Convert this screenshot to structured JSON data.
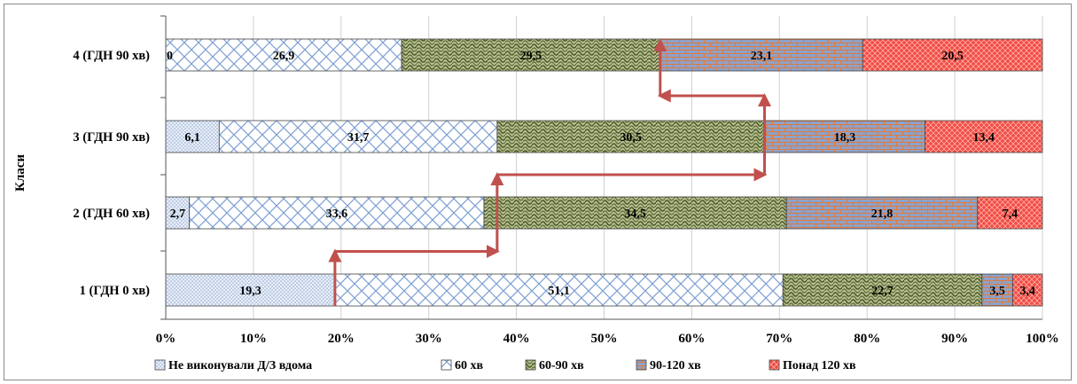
{
  "chart_data": {
    "type": "bar",
    "orientation": "horizontal",
    "stacked": "percent",
    "categories": [
      "1 (ГДН 0 хв)",
      "2 (ГДН 60 хв)",
      "3 (ГДН 90 хв)",
      "4 (ГДН 90 хв)"
    ],
    "series": [
      {
        "name": "Не виконували Д/З вдома",
        "values": [
          19.3,
          2.7,
          6.1,
          0
        ],
        "labels": [
          "19,3",
          "2,7",
          "6,1",
          "0"
        ],
        "color": "#dbe6f4",
        "pattern": "dots"
      },
      {
        "name": "60 хв",
        "values": [
          51.1,
          33.6,
          31.7,
          26.9
        ],
        "labels": [
          "51,1",
          "33,6",
          "31,7",
          "26,9"
        ],
        "color": "#9db5dc",
        "pattern": "crosshatch"
      },
      {
        "name": "60-90 хв",
        "values": [
          22.7,
          34.5,
          30.5,
          29.5
        ],
        "labels": [
          "22,7",
          "34,5",
          "30,5",
          "29,5"
        ],
        "color": "#6b7a3e",
        "pattern": "shingle"
      },
      {
        "name": "90-120 хв",
        "values": [
          3.5,
          21.8,
          18.3,
          23.1
        ],
        "labels": [
          "3,5",
          "21,8",
          "18,3",
          "23,1"
        ],
        "color": "#8fa0c8",
        "pattern": "brick"
      },
      {
        "name": "Понад 120 хв",
        "values": [
          3.4,
          7.4,
          13.4,
          20.5
        ],
        "labels": [
          "3,4",
          "7,4",
          "13,4",
          "20,5"
        ],
        "color": "#ee3b3b",
        "pattern": "lattice"
      }
    ],
    "xticks": [
      "0%",
      "10%",
      "20%",
      "30%",
      "40%",
      "50%",
      "60%",
      "70%",
      "80%",
      "90%",
      "100%"
    ],
    "xlim": [
      0,
      100
    ],
    "ylabel": "Класи",
    "xlabel": "",
    "grid": "vertical",
    "legend": "bottom",
    "annotations": {
      "type": "step-arrows",
      "color": "#c0504d",
      "path_in_data_units": [
        [
          19.3,
          1
        ],
        [
          19.3,
          1.5
        ],
        [
          37.8,
          1.5
        ],
        [
          37.8,
          2.5
        ],
        [
          68.3,
          2.5
        ],
        [
          68.3,
          3.5
        ],
        [
          56.4,
          3.5
        ],
        [
          56.4,
          4
        ]
      ]
    }
  }
}
